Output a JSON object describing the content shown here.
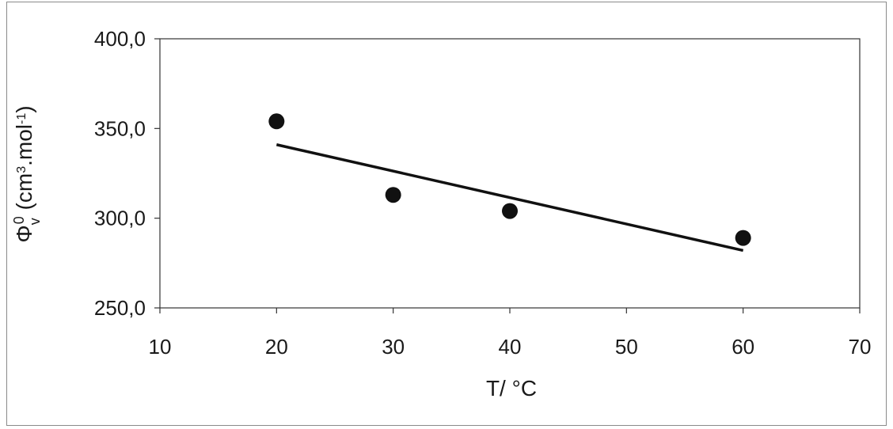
{
  "chart_data": {
    "type": "scatter",
    "title": "",
    "xlabel": "T/ °C",
    "ylabel_parts": {
      "symbol": "Φ",
      "sub": "v",
      "sup": "0",
      "open": " (cm",
      "sup2": "3",
      "mid": ".mol",
      "sup3": "-1",
      "close": ")"
    },
    "xlim": [
      10,
      70
    ],
    "ylim": [
      250,
      400
    ],
    "x_ticks": [
      10,
      20,
      30,
      40,
      50,
      60,
      70
    ],
    "x_tick_labels": [
      "10",
      "20",
      "30",
      "40",
      "50",
      "60",
      "70"
    ],
    "y_ticks": [
      250,
      300,
      350,
      400
    ],
    "y_tick_labels": [
      "250,0",
      "300,0",
      "350,0",
      "400,0"
    ],
    "grid": false,
    "legend": "none",
    "series": [
      {
        "x": [
          20,
          30,
          40,
          60
        ],
        "y": [
          354,
          313,
          304,
          289
        ]
      }
    ],
    "trendline": {
      "x": [
        20,
        60
      ],
      "y": [
        341,
        282
      ]
    },
    "colors": {
      "marker": "#111111",
      "line": "#111111",
      "axis": "#333333"
    }
  }
}
